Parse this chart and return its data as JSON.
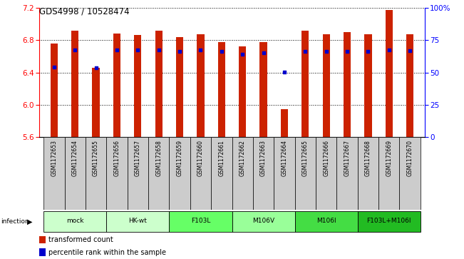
{
  "title": "GDS4998 / 10528474",
  "samples": [
    "GSM1172653",
    "GSM1172654",
    "GSM1172655",
    "GSM1172656",
    "GSM1172657",
    "GSM1172658",
    "GSM1172659",
    "GSM1172660",
    "GSM1172661",
    "GSM1172662",
    "GSM1172663",
    "GSM1172664",
    "GSM1172665",
    "GSM1172666",
    "GSM1172667",
    "GSM1172668",
    "GSM1172669",
    "GSM1172670"
  ],
  "bar_values": [
    6.76,
    6.92,
    6.46,
    6.88,
    6.86,
    6.92,
    6.84,
    6.87,
    6.78,
    6.72,
    6.78,
    5.95,
    6.92,
    6.87,
    6.9,
    6.87,
    7.17,
    6.87
  ],
  "percentile_values": [
    6.47,
    6.68,
    6.46,
    6.68,
    6.68,
    6.68,
    6.66,
    6.68,
    6.66,
    6.63,
    6.64,
    6.41,
    6.66,
    6.66,
    6.66,
    6.66,
    6.68,
    6.67
  ],
  "groups": [
    {
      "label": "mock",
      "start": 0,
      "end": 3,
      "color": "#ccffcc"
    },
    {
      "label": "HK-wt",
      "start": 3,
      "end": 6,
      "color": "#ccffcc"
    },
    {
      "label": "F103L",
      "start": 6,
      "end": 9,
      "color": "#66ff66"
    },
    {
      "label": "M106V",
      "start": 9,
      "end": 12,
      "color": "#99ff99"
    },
    {
      "label": "M106I",
      "start": 12,
      "end": 15,
      "color": "#44dd44"
    },
    {
      "label": "F103L+M106I",
      "start": 15,
      "end": 18,
      "color": "#22bb22"
    }
  ],
  "ylim_left": [
    5.6,
    7.2
  ],
  "ylim_right": [
    0,
    100
  ],
  "yticks_left": [
    5.6,
    6.0,
    6.4,
    6.8,
    7.2
  ],
  "yticks_right": [
    0,
    25,
    50,
    75,
    100
  ],
  "bar_color": "#cc2200",
  "dot_color": "#0000cc",
  "bg_color": "#ffffff",
  "plot_bg": "#ffffff",
  "grid_color": "#000000",
  "sample_bg": "#cccccc",
  "bar_width": 0.35
}
